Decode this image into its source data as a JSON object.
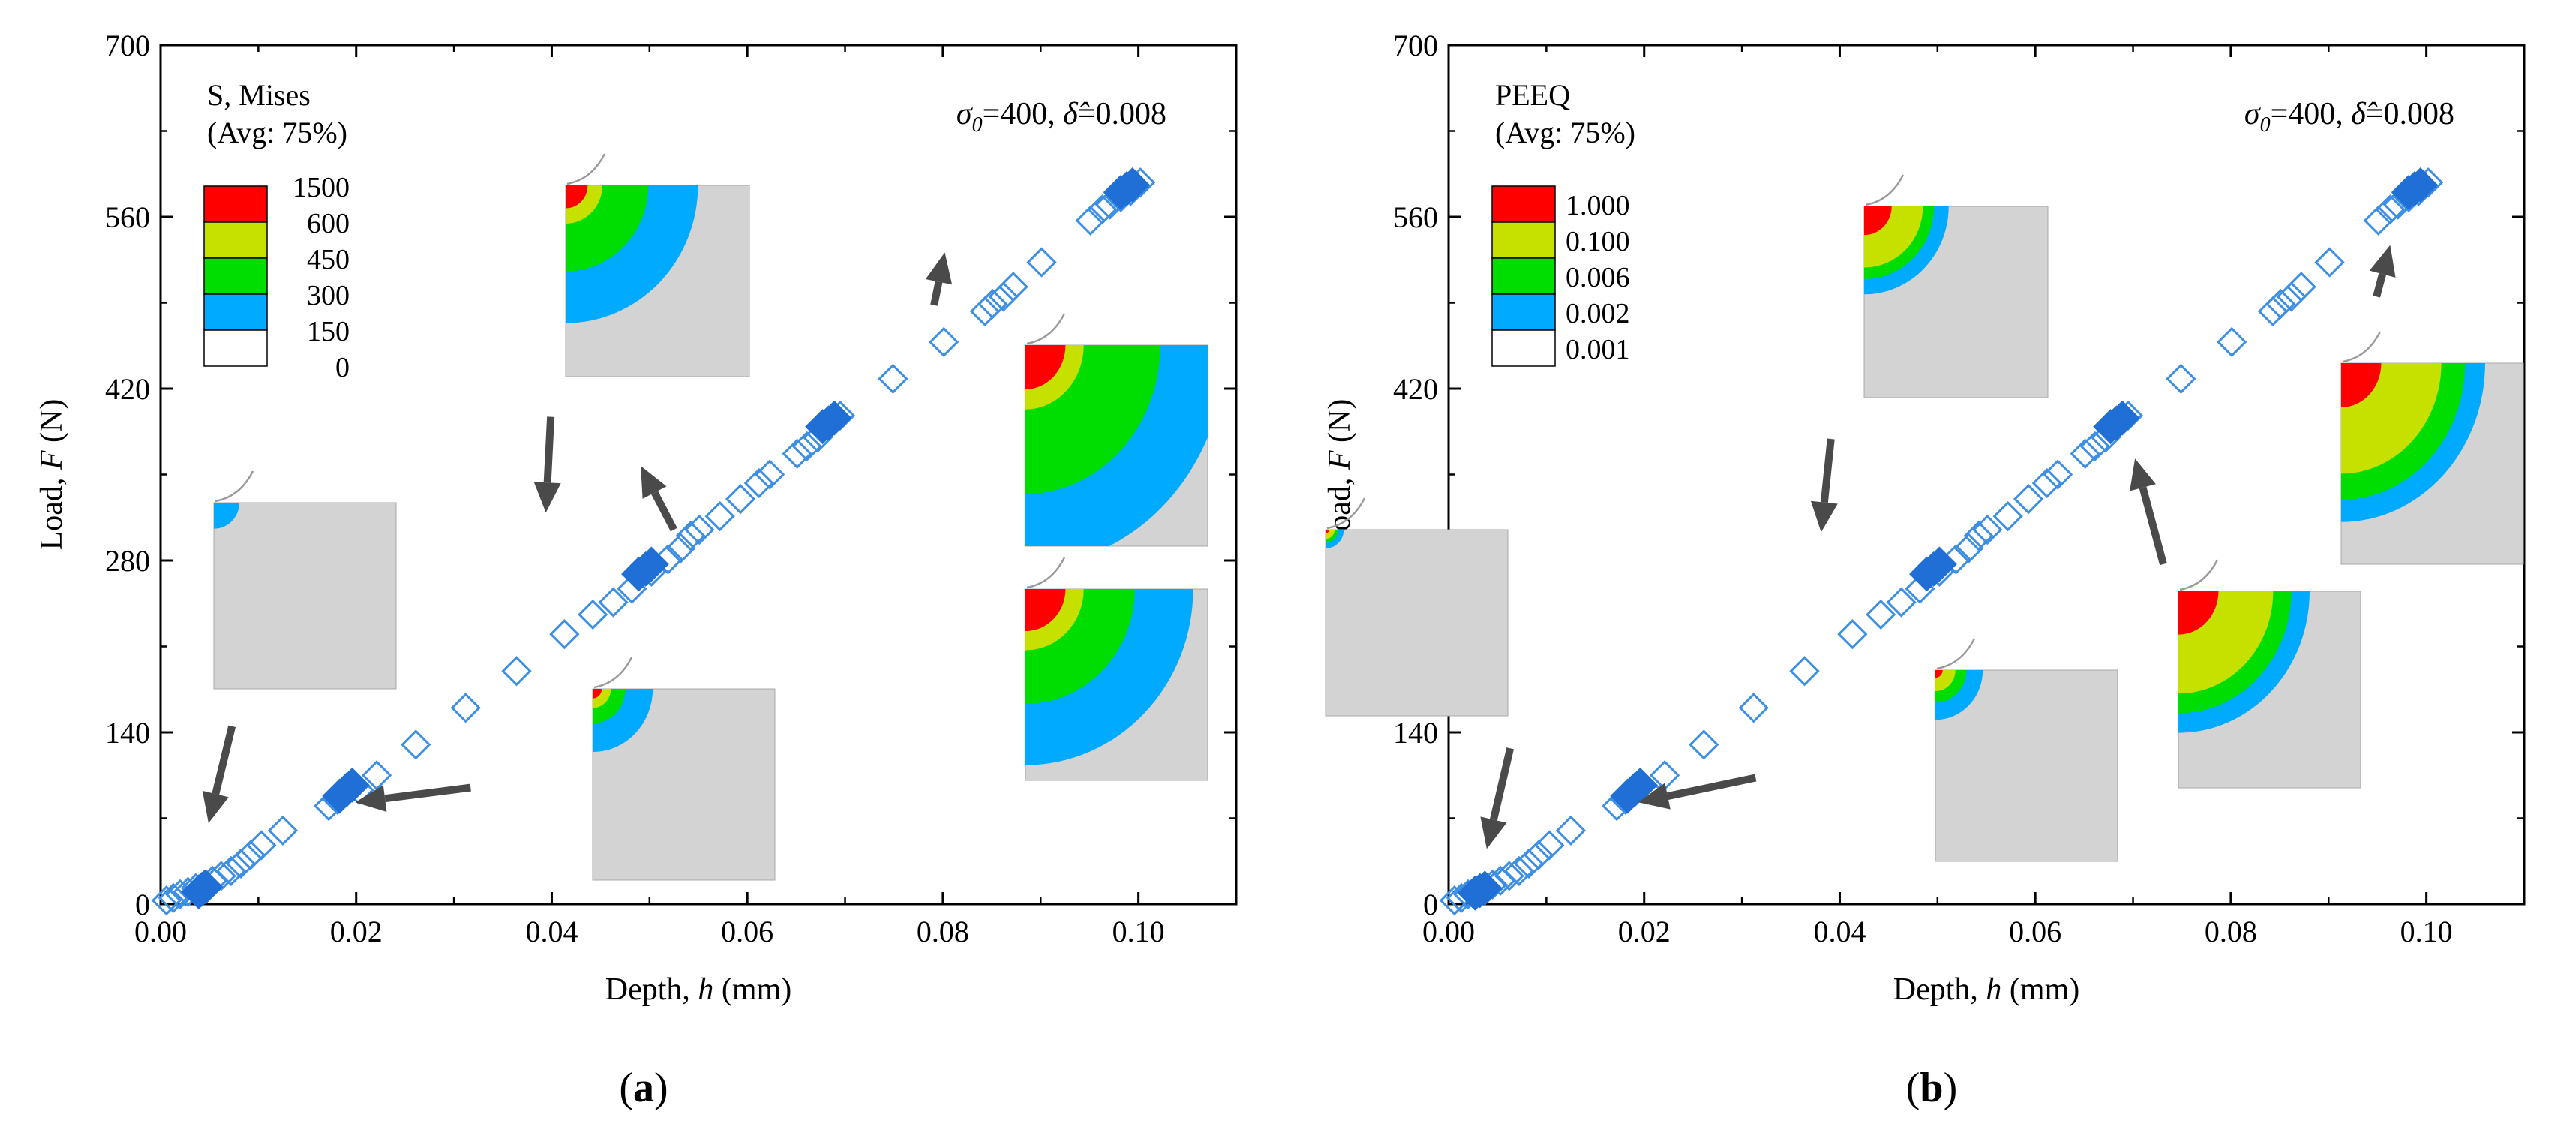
{
  "colors": {
    "marker": "#3d8fe6",
    "marker_solid": "#1f6fd6",
    "arrow": "#4a4a4a",
    "sample": "#d3d3d3",
    "sample_edge": "#a8a8a8"
  },
  "chart_data": [
    {
      "type": "scatter",
      "panel_label": "(a)",
      "panel_letter": "a",
      "xlabel": "Depth, h (mm)",
      "xlabel_parts": {
        "pre": "Depth, ",
        "var": "h",
        "post": " (mm)"
      },
      "ylabel": "Load, F (N)",
      "ylabel_parts": {
        "pre": "Load, ",
        "var": "F",
        "post": " (N)"
      },
      "xlim": [
        0,
        0.11
      ],
      "ylim": [
        0,
        700
      ],
      "xticks": [
        0,
        0.02,
        0.04,
        0.06,
        0.08,
        0.1
      ],
      "xtick_labels": [
        "0.00",
        "0.02",
        "0.04",
        "0.06",
        "0.08",
        "0.10"
      ],
      "yticks": [
        0,
        140,
        280,
        420,
        560,
        700
      ],
      "ytick_labels": [
        "0",
        "140",
        "280",
        "420",
        "560",
        "700"
      ],
      "annotation": "σ0=400, δ̂=0.008",
      "annotation_parts": {
        "a": "σ",
        "a_sub": "0",
        "b": "=400, ",
        "c": "δ̂",
        "d": "=0.008"
      },
      "legend": {
        "title": "S, Mises",
        "subtitle": "(Avg: 75%)",
        "colors": [
          "#ff0000",
          "#c6e000",
          "#00dd00",
          "#00aaff",
          "#ffffff"
        ],
        "labels": [
          "1500",
          "600",
          "450",
          "300",
          "150",
          "0"
        ]
      },
      "series": [
        {
          "name": "open",
          "marker": "diamond-open",
          "x": [
            0.0006,
            0.0013,
            0.002,
            0.0028,
            0.0036,
            0.0045,
            0.0053,
            0.0062,
            0.0072,
            0.0082,
            0.0092,
            0.0103,
            0.0125,
            0.0172,
            0.0181,
            0.0203,
            0.0221,
            0.0261,
            0.0312,
            0.0364,
            0.0413,
            0.0442,
            0.0463,
            0.0482,
            0.0502,
            0.0519,
            0.0532,
            0.0542,
            0.0551,
            0.0572,
            0.0593,
            0.0612,
            0.0623,
            0.0651,
            0.0661,
            0.0672,
            0.0695,
            0.0749,
            0.0801,
            0.0843,
            0.0851,
            0.0862,
            0.0872,
            0.0901,
            0.0951,
            0.0963,
            0.0971,
            0.0982,
            0.0992,
            0.1002
          ],
          "y": [
            3,
            5,
            8,
            10,
            13,
            16,
            19,
            23,
            27,
            33,
            40,
            48,
            60,
            80,
            85,
            93,
            105,
            130,
            160,
            190,
            220,
            236,
            246,
            257,
            271,
            281,
            290,
            300,
            305,
            316,
            330,
            343,
            350,
            367,
            373,
            380,
            398,
            428,
            458,
            483,
            489,
            495,
            503,
            523,
            557,
            566,
            570,
            576,
            581,
            588
          ]
        },
        {
          "name": "highlighted",
          "marker": "diamond-filled",
          "x": [
            0.0039,
            0.0042,
            0.0046,
            0.0183,
            0.019,
            0.0196,
            0.0489,
            0.0496,
            0.0502,
            0.0677,
            0.0683,
            0.0689,
            0.0982,
            0.0988,
            0.0994
          ],
          "y": [
            10,
            12,
            14,
            88,
            93,
            97,
            269,
            273,
            277,
            389,
            392,
            396,
            580,
            583,
            586
          ]
        }
      ],
      "arrows": [
        {
          "x1": 0.0073,
          "y1": 145,
          "x2": 0.0049,
          "y2": 66
        },
        {
          "x1": 0.0317,
          "y1": 95,
          "x2": 0.0199,
          "y2": 83
        },
        {
          "x1": 0.0399,
          "y1": 397,
          "x2": 0.0394,
          "y2": 319
        },
        {
          "x1": 0.0525,
          "y1": 305,
          "x2": 0.0491,
          "y2": 357
        },
        {
          "x1": 0.0791,
          "y1": 488,
          "x2": 0.0802,
          "y2": 531
        }
      ]
    },
    {
      "type": "scatter",
      "panel_label": "(b)",
      "panel_letter": "b",
      "xlabel": "Depth, h (mm)",
      "xlabel_parts": {
        "pre": "Depth, ",
        "var": "h",
        "post": " (mm)"
      },
      "ylabel": "Load, F (N)",
      "ylabel_parts": {
        "pre": "Load, ",
        "var": "F",
        "post": " (N)"
      },
      "xlim": [
        0,
        0.11
      ],
      "ylim": [
        0,
        700
      ],
      "xticks": [
        0,
        0.02,
        0.04,
        0.06,
        0.08,
        0.1
      ],
      "xtick_labels": [
        "0.00",
        "0.02",
        "0.04",
        "0.06",
        "0.08",
        "0.10"
      ],
      "yticks": [
        0,
        140,
        280,
        420,
        560,
        700
      ],
      "ytick_labels": [
        "0",
        "140",
        "280",
        "420",
        "560",
        "700"
      ],
      "annotation": "σ0=400, δ̂=0.008",
      "annotation_parts": {
        "a": "σ",
        "a_sub": "0",
        "b": "=400, ",
        "c": "δ̂",
        "d": "=0.008"
      },
      "legend": {
        "title": "PEEQ",
        "subtitle": "(Avg: 75%)",
        "colors": [
          "#ff0000",
          "#c6e000",
          "#00dd00",
          "#00aaff",
          "#ffffff"
        ],
        "labels": [
          "1.000",
          "0.100",
          "0.006",
          "0.002",
          "0.001"
        ]
      },
      "series": [
        {
          "name": "open",
          "marker": "diamond-open",
          "x": [
            0.0006,
            0.0013,
            0.002,
            0.0028,
            0.0036,
            0.0045,
            0.0053,
            0.0062,
            0.0072,
            0.0082,
            0.0092,
            0.0103,
            0.0125,
            0.0172,
            0.0181,
            0.0203,
            0.0221,
            0.0261,
            0.0312,
            0.0364,
            0.0413,
            0.0442,
            0.0463,
            0.0482,
            0.0502,
            0.0519,
            0.0532,
            0.0542,
            0.0551,
            0.0572,
            0.0593,
            0.0612,
            0.0623,
            0.0651,
            0.0661,
            0.0672,
            0.0695,
            0.0749,
            0.0801,
            0.0843,
            0.0851,
            0.0862,
            0.0872,
            0.0901,
            0.0951,
            0.0963,
            0.0971,
            0.0982,
            0.0992,
            0.1002
          ],
          "y": [
            3,
            5,
            8,
            10,
            13,
            16,
            19,
            23,
            27,
            33,
            40,
            48,
            60,
            80,
            85,
            93,
            105,
            130,
            160,
            190,
            220,
            236,
            246,
            257,
            271,
            281,
            290,
            300,
            305,
            316,
            330,
            343,
            350,
            367,
            373,
            380,
            398,
            428,
            458,
            483,
            489,
            495,
            503,
            523,
            557,
            566,
            570,
            576,
            581,
            588
          ]
        },
        {
          "name": "highlighted",
          "marker": "diamond-filled",
          "x": [
            0.0027,
            0.0032,
            0.0037,
            0.0183,
            0.019,
            0.0196,
            0.0489,
            0.0496,
            0.0502,
            0.0677,
            0.0683,
            0.0689,
            0.0982,
            0.0988,
            0.0994
          ],
          "y": [
            9,
            11,
            13,
            88,
            93,
            97,
            269,
            273,
            277,
            389,
            392,
            396,
            580,
            583,
            586
          ]
        }
      ],
      "arrows": [
        {
          "x1": 0.0063,
          "y1": 127,
          "x2": 0.0039,
          "y2": 45
        },
        {
          "x1": 0.0314,
          "y1": 103,
          "x2": 0.0194,
          "y2": 83
        },
        {
          "x1": 0.0391,
          "y1": 379,
          "x2": 0.0381,
          "y2": 303
        },
        {
          "x1": 0.0731,
          "y1": 277,
          "x2": 0.0702,
          "y2": 363
        },
        {
          "x1": 0.0949,
          "y1": 495,
          "x2": 0.0963,
          "y2": 537
        }
      ]
    }
  ]
}
